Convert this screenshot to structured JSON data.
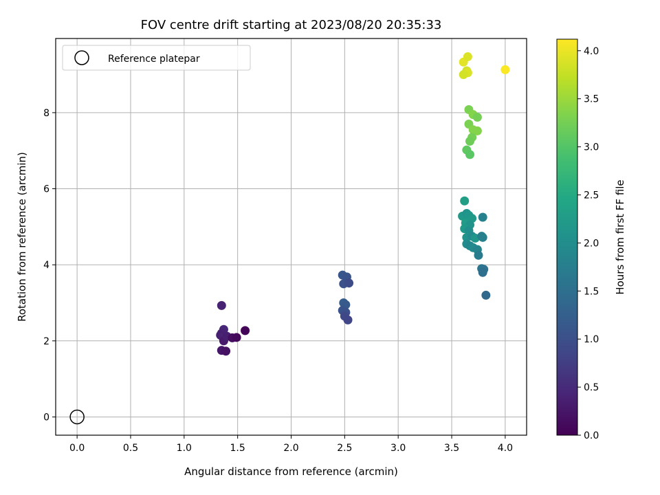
{
  "chart_data": {
    "type": "scatter",
    "title": "FOV centre drift starting at 2023/08/20 20:35:33",
    "xlabel": "Angular distance from reference (arcmin)",
    "ylabel": "Rotation from reference (arcmin)",
    "xlim": [
      -0.2,
      4.2
    ],
    "ylim": [
      -0.48,
      9.95
    ],
    "xticks": [
      0.0,
      0.5,
      1.0,
      1.5,
      2.0,
      2.5,
      3.0,
      3.5,
      4.0
    ],
    "xtick_labels": [
      "0.0",
      "0.5",
      "1.0",
      "1.5",
      "2.0",
      "2.5",
      "3.0",
      "3.5",
      "4.0"
    ],
    "yticks": [
      0,
      2,
      4,
      6,
      8
    ],
    "ytick_labels": [
      "0",
      "2",
      "4",
      "6",
      "8"
    ],
    "grid": true,
    "legend": {
      "placement": "upper-left",
      "entries": [
        {
          "label": "Reference platepar",
          "marker": "open-circle",
          "color": "#000000"
        }
      ]
    },
    "reference_point": {
      "x": 0.0,
      "y": 0.0
    },
    "colorbar": {
      "label": "Hours from first FF file",
      "colormap": "viridis",
      "range": [
        0.0,
        4.12
      ],
      "ticks": [
        0.0,
        0.5,
        1.0,
        1.5,
        2.0,
        2.5,
        3.0,
        3.5,
        4.0
      ],
      "tick_labels": [
        "0.0",
        "0.5",
        "1.0",
        "1.5",
        "2.0",
        "2.5",
        "3.0",
        "3.5",
        "4.0"
      ]
    },
    "series": [
      {
        "points": [
          [
            1.35,
            2.93,
            0.4
          ],
          [
            1.37,
            2.3,
            0.45
          ],
          [
            1.35,
            2.2,
            0.4
          ],
          [
            1.34,
            2.15,
            0.35
          ],
          [
            1.36,
            2.1,
            0.4
          ],
          [
            1.37,
            2.0,
            0.3
          ],
          [
            1.4,
            2.12,
            0.35
          ],
          [
            1.45,
            2.08,
            0.15
          ],
          [
            1.49,
            2.09,
            0.1
          ],
          [
            1.57,
            2.27,
            0.05
          ],
          [
            1.35,
            1.75,
            0.25
          ],
          [
            1.39,
            1.73,
            0.2
          ],
          [
            2.48,
            3.73,
            1.1
          ],
          [
            2.52,
            3.68,
            1.05
          ],
          [
            2.49,
            3.5,
            1.0
          ],
          [
            2.54,
            3.52,
            0.95
          ],
          [
            2.49,
            3.0,
            1.2
          ],
          [
            2.51,
            2.95,
            1.15
          ],
          [
            2.48,
            2.8,
            1.05
          ],
          [
            2.51,
            2.75,
            1.0
          ],
          [
            2.5,
            2.65,
            0.9
          ],
          [
            2.53,
            2.55,
            0.85
          ],
          [
            3.62,
            5.68,
            2.3
          ],
          [
            3.6,
            5.28,
            2.2
          ],
          [
            3.64,
            5.35,
            2.1
          ],
          [
            3.66,
            5.3,
            2.15
          ],
          [
            3.69,
            5.22,
            2.2
          ],
          [
            3.79,
            5.25,
            1.8
          ],
          [
            3.63,
            5.1,
            2.25
          ],
          [
            3.67,
            5.05,
            2.1
          ],
          [
            3.62,
            4.95,
            2.2
          ],
          [
            3.66,
            4.9,
            2.05
          ],
          [
            3.64,
            4.72,
            2.1
          ],
          [
            3.69,
            4.75,
            1.95
          ],
          [
            3.72,
            4.7,
            2.15
          ],
          [
            3.78,
            4.75,
            1.75
          ],
          [
            3.79,
            4.72,
            1.8
          ],
          [
            3.64,
            4.55,
            2.0
          ],
          [
            3.67,
            4.5,
            1.9
          ],
          [
            3.7,
            4.45,
            1.95
          ],
          [
            3.74,
            4.4,
            1.85
          ],
          [
            3.75,
            4.25,
            1.7
          ],
          [
            3.78,
            3.9,
            1.6
          ],
          [
            3.8,
            3.88,
            1.55
          ],
          [
            3.79,
            3.8,
            1.5
          ],
          [
            3.82,
            3.2,
            1.4
          ],
          [
            3.66,
            8.08,
            3.3
          ],
          [
            3.7,
            7.95,
            3.35
          ],
          [
            3.74,
            7.88,
            3.25
          ],
          [
            3.66,
            7.7,
            3.3
          ],
          [
            3.7,
            7.55,
            3.35
          ],
          [
            3.74,
            7.52,
            3.35
          ],
          [
            3.69,
            7.35,
            3.25
          ],
          [
            3.67,
            7.25,
            3.2
          ],
          [
            3.64,
            7.02,
            3.1
          ],
          [
            3.67,
            6.9,
            3.05
          ],
          [
            3.61,
            9.33,
            3.95
          ],
          [
            3.65,
            9.47,
            3.9
          ],
          [
            3.64,
            9.1,
            3.85
          ],
          [
            3.65,
            9.05,
            3.9
          ],
          [
            3.61,
            9.0,
            3.85
          ],
          [
            4.0,
            9.13,
            4.1
          ]
        ]
      }
    ]
  }
}
